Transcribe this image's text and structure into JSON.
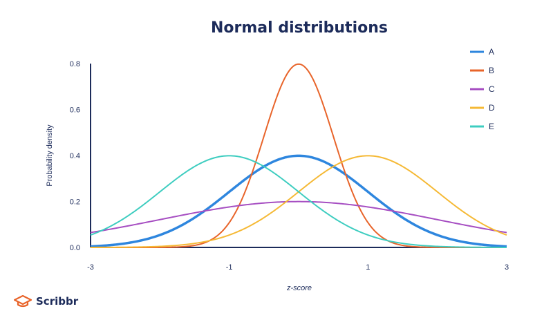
{
  "chart_data": {
    "type": "line",
    "title": "Normal distributions",
    "xlabel": "z-score",
    "ylabel": "Probability density",
    "xlim": [
      -3,
      3
    ],
    "ylim": [
      0,
      0.8
    ],
    "x_ticks": [
      -3,
      -1,
      1,
      3
    ],
    "x_tick_labels": [
      "-3",
      "-1",
      "1",
      "3"
    ],
    "y_ticks": [
      0.0,
      0.2,
      0.4,
      0.6,
      0.8
    ],
    "y_tick_labels": [
      "0.0",
      "0.2",
      "0.4",
      "0.6",
      "0.8"
    ],
    "grid": false,
    "legend_position": "top-right",
    "series": [
      {
        "name": "A",
        "mean": 0,
        "sd": 1,
        "color": "#2e86de"
      },
      {
        "name": "B",
        "mean": 0,
        "sd": 0.5,
        "color": "#e8642a"
      },
      {
        "name": "C",
        "mean": 0,
        "sd": 2,
        "color": "#a64ec2"
      },
      {
        "name": "D",
        "mean": 1,
        "sd": 1,
        "color": "#f5b935"
      },
      {
        "name": "E",
        "mean": -1,
        "sd": 1,
        "color": "#3ecdc0"
      }
    ]
  },
  "branding": {
    "logo_text": "Scribbr",
    "logo_icon": "graduation-cap-icon",
    "logo_color": "#e8642a"
  }
}
